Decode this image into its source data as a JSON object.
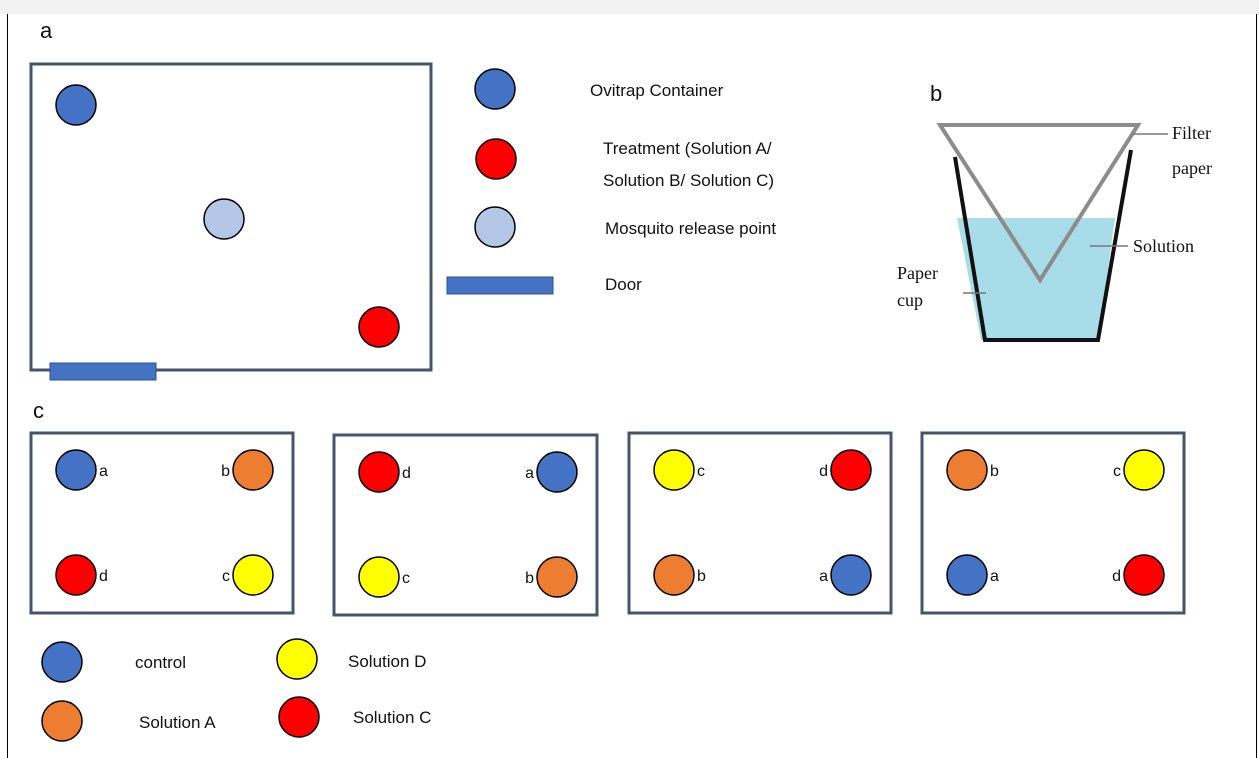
{
  "colors": {
    "blue": "#4472C4",
    "red": "#FF0000",
    "light_blue": "#B4C7E7",
    "orange": "#ED7D31",
    "yellow": "#FFFF00",
    "door": "#4472C4",
    "box_border": "#44546A",
    "solution_fill": "#A8DCE8"
  },
  "panel_a": {
    "label": "a",
    "legend": {
      "ovitrap": "Ovitrap Container",
      "treatment_line1": "Treatment (Solution A/",
      "treatment_line2": "Solution B/ Solution C)",
      "release": "Mosquito release point",
      "door": "Door"
    }
  },
  "panel_b": {
    "label": "b",
    "filter_line1": "Filter",
    "filter_line2": "paper",
    "solution": "Solution",
    "cup_line1": "Paper",
    "cup_line2": "cup"
  },
  "panel_c": {
    "label": "c",
    "boxes": [
      {
        "tl": {
          "letter": "a",
          "color": "blue"
        },
        "tr": {
          "letter": "b",
          "color": "orange"
        },
        "bl": {
          "letter": "d",
          "color": "red"
        },
        "br": {
          "letter": "c",
          "color": "yellow"
        }
      },
      {
        "tl": {
          "letter": "d",
          "color": "red"
        },
        "tr": {
          "letter": "a",
          "color": "blue"
        },
        "bl": {
          "letter": "c",
          "color": "yellow"
        },
        "br": {
          "letter": "b",
          "color": "orange"
        }
      },
      {
        "tl": {
          "letter": "c",
          "color": "yellow"
        },
        "tr": {
          "letter": "d",
          "color": "red"
        },
        "bl": {
          "letter": "b",
          "color": "orange"
        },
        "br": {
          "letter": "a",
          "color": "blue"
        }
      },
      {
        "tl": {
          "letter": "b",
          "color": "orange"
        },
        "tr": {
          "letter": "c",
          "color": "yellow"
        },
        "bl": {
          "letter": "a",
          "color": "blue"
        },
        "br": {
          "letter": "d",
          "color": "red"
        }
      }
    ],
    "legend": {
      "control": "control",
      "solution_a": "Solution A",
      "solution_d": "Solution D",
      "solution_c": "Solution C"
    }
  }
}
